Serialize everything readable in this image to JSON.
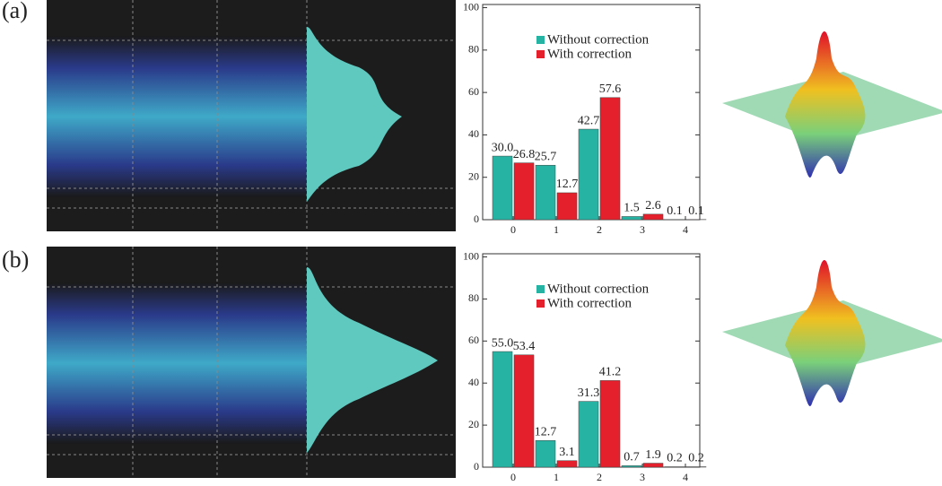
{
  "panel_labels": [
    "(a)",
    "(b)"
  ],
  "chart_data": [
    {
      "type": "bar",
      "categories": [
        "0",
        "1",
        "2",
        "3",
        "4"
      ],
      "series": [
        {
          "name": "Without correction",
          "color": "#26b3a3",
          "values": [
            30.0,
            25.7,
            42.7,
            1.5,
            0.1
          ],
          "value_labels": [
            "30.0",
            "25.7",
            "42.7",
            "1.5",
            "0.1"
          ]
        },
        {
          "name": "With correction",
          "color": "#e3202b",
          "values": [
            26.8,
            12.7,
            57.6,
            2.6,
            0.1
          ],
          "value_labels": [
            "26.8",
            "12.7",
            "57.6",
            "2.6",
            "0.1"
          ]
        }
      ],
      "ylim": [
        0,
        101.5
      ],
      "yticks": [
        0,
        20,
        40,
        60,
        80,
        100
      ]
    },
    {
      "type": "bar",
      "categories": [
        "0",
        "1",
        "2",
        "3",
        "4"
      ],
      "series": [
        {
          "name": "Without correction",
          "color": "#26b3a3",
          "values": [
            55.0,
            12.7,
            31.3,
            0.7,
            0.2
          ],
          "value_labels": [
            "55.0",
            "12.7",
            "31.3",
            "0.7",
            "0.2"
          ]
        },
        {
          "name": "With correction",
          "color": "#e3202b",
          "values": [
            53.4,
            3.1,
            41.2,
            1.9,
            0.2
          ],
          "value_labels": [
            "53.4",
            "3.1",
            "41.2",
            "1.9",
            "0.2"
          ]
        }
      ],
      "ylim": [
        0,
        101.5
      ],
      "yticks": [
        0,
        20,
        40,
        60,
        80,
        100
      ]
    }
  ]
}
